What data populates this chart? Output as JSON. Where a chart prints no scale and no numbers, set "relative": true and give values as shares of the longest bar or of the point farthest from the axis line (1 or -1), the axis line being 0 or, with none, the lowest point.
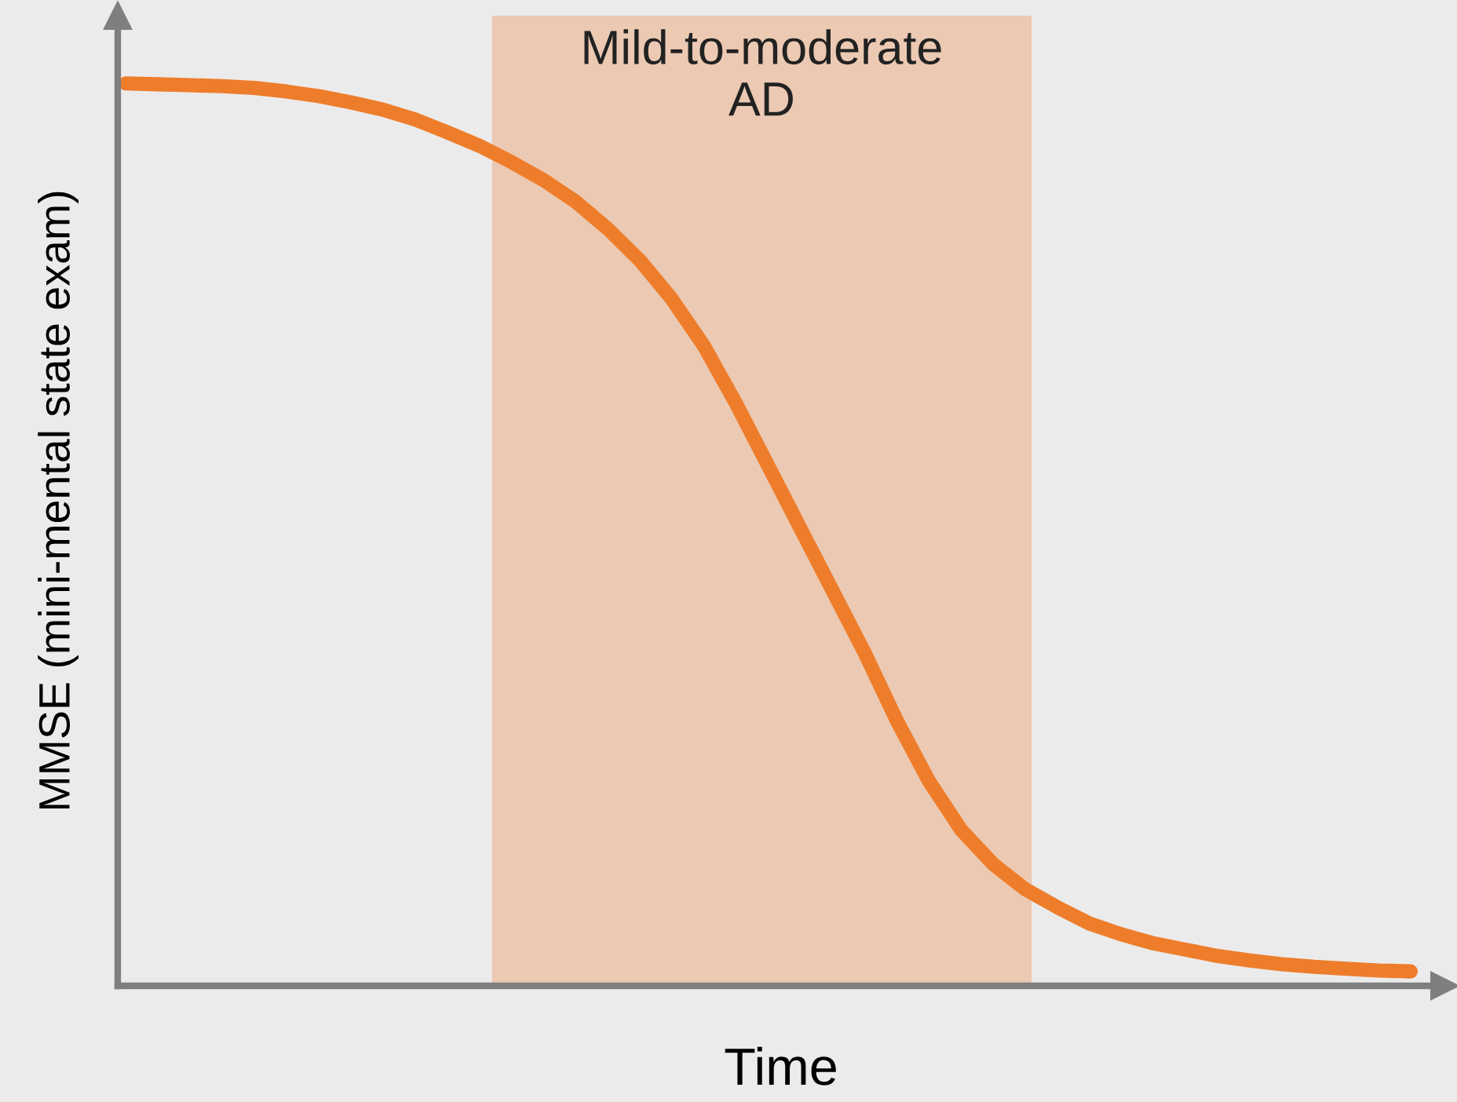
{
  "chart_data": {
    "type": "line",
    "relative": true,
    "xlabel": "Time",
    "ylabel": "MMSE (mini-mental state exam)",
    "categories": [
      null,
      null,
      null,
      null,
      null,
      null,
      null,
      null,
      null,
      null,
      null,
      null,
      null,
      null,
      null,
      null,
      null,
      null,
      null,
      null,
      null,
      null,
      null,
      null,
      null,
      null,
      null,
      null,
      null,
      null,
      null,
      null,
      null,
      null,
      null,
      null,
      null,
      null,
      null,
      null,
      null
    ],
    "series": [
      {
        "color": "#ee7d2b",
        "values": [
          1.0,
          0.999,
          0.998,
          0.997,
          0.995,
          0.991,
          0.986,
          0.979,
          0.971,
          0.96,
          0.946,
          0.931,
          0.913,
          0.893,
          0.869,
          0.839,
          0.804,
          0.761,
          0.709,
          0.645,
          0.576,
          0.507,
          0.438,
          0.369,
          0.294,
          0.227,
          0.173,
          0.135,
          0.107,
          0.087,
          0.069,
          0.057,
          0.047,
          0.04,
          0.033,
          0.028,
          0.024,
          0.021,
          0.019,
          0.017,
          0.016
        ]
      }
    ],
    "annotations": [
      "Mild-to-moderate\nAD"
    ],
    "marker": "none",
    "line_style": "solid",
    "legend": false
  }
}
